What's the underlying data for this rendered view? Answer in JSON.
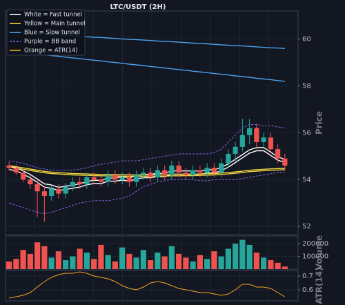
{
  "chart_data": [
    {
      "type": "candlestick",
      "title": "LTC/USDT (2H)",
      "ylabel": "Price",
      "ylim": [
        51.65,
        61.2
      ],
      "yticks": [
        52,
        54,
        56,
        58,
        60
      ],
      "grid": true,
      "legend": "upper left",
      "up_color": "#26a69a",
      "down_color": "#ef5350",
      "open": [
        54.6,
        54.5,
        54.3,
        54.0,
        53.8,
        53.5,
        53.3,
        53.6,
        53.4,
        53.7,
        53.9,
        53.8,
        54.1,
        54.0,
        53.9,
        54.2,
        54.0,
        54.1,
        53.9,
        54.2,
        54.3,
        54.1,
        54.4,
        54.2,
        54.6,
        54.3,
        54.2,
        54.4,
        54.3,
        54.5,
        54.3,
        54.7,
        55.1,
        55.4,
        55.9,
        56.2,
        55.6,
        55.8,
        55.3,
        54.9
      ],
      "high": [
        54.75,
        54.65,
        54.45,
        54.2,
        54.0,
        53.7,
        53.75,
        53.8,
        53.85,
        54.1,
        54.1,
        54.3,
        54.3,
        54.2,
        54.4,
        54.4,
        54.3,
        54.3,
        54.4,
        54.5,
        54.5,
        54.6,
        54.6,
        54.8,
        54.8,
        54.5,
        54.6,
        54.6,
        54.7,
        54.7,
        54.9,
        55.3,
        55.6,
        56.6,
        56.6,
        56.4,
        56.0,
        56.0,
        55.5,
        55.1
      ],
      "low": [
        54.4,
        54.2,
        53.9,
        53.6,
        52.4,
        52.2,
        53.1,
        53.2,
        53.2,
        53.5,
        53.6,
        53.6,
        53.8,
        53.7,
        53.7,
        53.8,
        53.8,
        53.7,
        53.7,
        54.0,
        53.9,
        53.9,
        54.0,
        54.0,
        54.1,
        54.0,
        54.0,
        54.1,
        54.1,
        54.1,
        54.1,
        54.5,
        54.8,
        55.2,
        55.5,
        55.3,
        55.4,
        55.1,
        54.7,
        54.4
      ],
      "close": [
        54.5,
        54.3,
        54.0,
        53.8,
        53.5,
        53.3,
        53.6,
        53.4,
        53.7,
        53.9,
        53.8,
        54.1,
        54.0,
        53.9,
        54.2,
        54.0,
        54.1,
        53.9,
        54.2,
        54.3,
        54.1,
        54.4,
        54.2,
        54.6,
        54.3,
        54.2,
        54.4,
        54.3,
        54.5,
        54.3,
        54.7,
        55.1,
        55.4,
        55.9,
        56.2,
        55.6,
        55.8,
        55.3,
        54.9,
        54.6
      ],
      "overlays": [
        {
          "name": "White = Fast tunnel",
          "color": "#ffffff",
          "dash": false,
          "lines": [
            [
              54.57,
              54.52,
              54.37,
              54.22,
              54.02,
              53.82,
              53.77,
              53.67,
              53.72,
              53.77,
              53.82,
              53.92,
              53.97,
              53.97,
              54.07,
              54.07,
              54.12,
              54.07,
              54.17,
              54.22,
              54.22,
              54.27,
              54.27,
              54.37,
              54.37,
              54.37,
              54.37,
              54.37,
              54.42,
              54.42,
              54.52,
              54.67,
              54.87,
              55.07,
              55.27,
              55.37,
              55.37,
              55.17,
              54.97,
              54.87
            ],
            [
              54.43,
              54.38,
              54.23,
              54.08,
              53.88,
              53.68,
              53.63,
              53.53,
              53.58,
              53.63,
              53.68,
              53.78,
              53.83,
              53.83,
              53.93,
              53.93,
              53.98,
              53.93,
              54.03,
              54.08,
              54.08,
              54.13,
              54.13,
              54.23,
              54.23,
              54.23,
              54.23,
              54.23,
              54.28,
              54.28,
              54.38,
              54.53,
              54.73,
              54.93,
              55.13,
              55.23,
              55.23,
              55.03,
              54.83,
              54.73
            ]
          ]
        },
        {
          "name": "Yellow = Main tunnel",
          "color": "#f5d742",
          "dash": false,
          "lines": [
            [
              54.6,
              54.55,
              54.5,
              54.45,
              54.4,
              54.35,
              54.32,
              54.3,
              54.28,
              54.26,
              54.25,
              54.24,
              54.23,
              54.22,
              54.22,
              54.21,
              54.21,
              54.2,
              54.2,
              54.2,
              54.2,
              54.21,
              54.21,
              54.22,
              54.22,
              54.23,
              54.23,
              54.24,
              54.25,
              54.26,
              54.28,
              54.3,
              54.33,
              54.36,
              54.4,
              54.42,
              54.44,
              54.46,
              54.47,
              54.48
            ],
            [
              54.54,
              54.49,
              54.44,
              54.39,
              54.34,
              54.29,
              54.26,
              54.24,
              54.22,
              54.2,
              54.19,
              54.18,
              54.17,
              54.16,
              54.16,
              54.15,
              54.15,
              54.14,
              54.14,
              54.14,
              54.14,
              54.15,
              54.15,
              54.16,
              54.16,
              54.17,
              54.17,
              54.18,
              54.19,
              54.2,
              54.22,
              54.24,
              54.27,
              54.3,
              54.34,
              54.36,
              54.38,
              54.4,
              54.41,
              54.42
            ]
          ]
        },
        {
          "name": "Blue = Slow tunnel",
          "color": "#4aa3f0",
          "dash": false,
          "lines": [
            [
              60.3,
              60.28,
              60.26,
              60.25,
              60.23,
              60.21,
              60.19,
              60.17,
              60.16,
              60.14,
              60.12,
              60.1,
              60.08,
              60.07,
              60.05,
              60.03,
              60.01,
              59.99,
              59.98,
              59.96,
              59.94,
              59.92,
              59.9,
              59.89,
              59.87,
              59.85,
              59.83,
              59.81,
              59.8,
              59.78,
              59.76,
              59.74,
              59.72,
              59.71,
              59.69,
              59.67,
              59.65,
              59.63,
              59.62,
              59.6
            ],
            [
              59.5,
              59.47,
              59.43,
              59.4,
              59.37,
              59.33,
              59.3,
              59.27,
              59.23,
              59.2,
              59.17,
              59.13,
              59.1,
              59.07,
              59.03,
              59.0,
              58.97,
              58.93,
              58.9,
              58.87,
              58.83,
              58.8,
              58.77,
              58.73,
              58.7,
              58.67,
              58.63,
              58.6,
              58.57,
              58.53,
              58.5,
              58.47,
              58.43,
              58.4,
              58.37,
              58.33,
              58.3,
              58.27,
              58.23,
              58.2
            ]
          ]
        },
        {
          "name": "Purple = BB band",
          "color": "#8e6cf0",
          "dash": true,
          "lines": [
            [
              54.8,
              54.75,
              54.7,
              54.6,
              54.5,
              54.45,
              54.4,
              54.4,
              54.4,
              54.4,
              54.45,
              54.5,
              54.6,
              54.65,
              54.7,
              54.75,
              54.8,
              54.8,
              54.8,
              54.85,
              54.9,
              54.95,
              55.0,
              55.05,
              55.1,
              55.1,
              55.1,
              55.1,
              55.1,
              55.15,
              55.3,
              55.6,
              55.9,
              56.2,
              56.35,
              56.35,
              56.3,
              56.3,
              56.25,
              56.2
            ],
            [
              53.0,
              52.9,
              52.8,
              52.7,
              52.6,
              52.55,
              52.6,
              52.7,
              52.8,
              52.9,
              53.0,
              53.05,
              53.1,
              53.1,
              53.1,
              53.15,
              53.2,
              53.3,
              53.5,
              53.7,
              53.8,
              53.9,
              53.95,
              54.0,
              54.0,
              54.0,
              54.0,
              53.95,
              53.95,
              54.0,
              54.0,
              54.0,
              54.0,
              54.05,
              54.1,
              54.15,
              54.2,
              54.25,
              54.3,
              54.3
            ]
          ]
        },
        {
          "name": "Orange = ATR(14)",
          "color": "#f5a623",
          "dash": false,
          "lines": []
        }
      ]
    },
    {
      "type": "bar",
      "ylabel": "Volume",
      "ylim": [
        0,
        260000
      ],
      "yticks": [
        100000,
        200000
      ],
      "grid": true,
      "values": [
        60000,
        80000,
        150000,
        120000,
        210000,
        180000,
        90000,
        140000,
        70000,
        100000,
        160000,
        130000,
        80000,
        190000,
        110000,
        60000,
        170000,
        120000,
        90000,
        150000,
        70000,
        130000,
        100000,
        180000,
        120000,
        90000,
        60000,
        110000,
        80000,
        140000,
        100000,
        160000,
        200000,
        230000,
        190000,
        130000,
        90000,
        70000,
        50000,
        20000
      ]
    },
    {
      "type": "line",
      "ylabel": "ATR(14)",
      "ylim": [
        0.52,
        0.74
      ],
      "yticks": [
        0.6,
        0.7
      ],
      "grid": true,
      "color": "#f5a623",
      "values": [
        0.54,
        0.55,
        0.56,
        0.58,
        0.62,
        0.66,
        0.69,
        0.71,
        0.72,
        0.72,
        0.73,
        0.72,
        0.7,
        0.69,
        0.68,
        0.66,
        0.63,
        0.61,
        0.6,
        0.62,
        0.65,
        0.66,
        0.65,
        0.63,
        0.61,
        0.6,
        0.59,
        0.58,
        0.58,
        0.57,
        0.56,
        0.57,
        0.6,
        0.64,
        0.64,
        0.62,
        0.62,
        0.61,
        0.58,
        0.55
      ]
    }
  ]
}
